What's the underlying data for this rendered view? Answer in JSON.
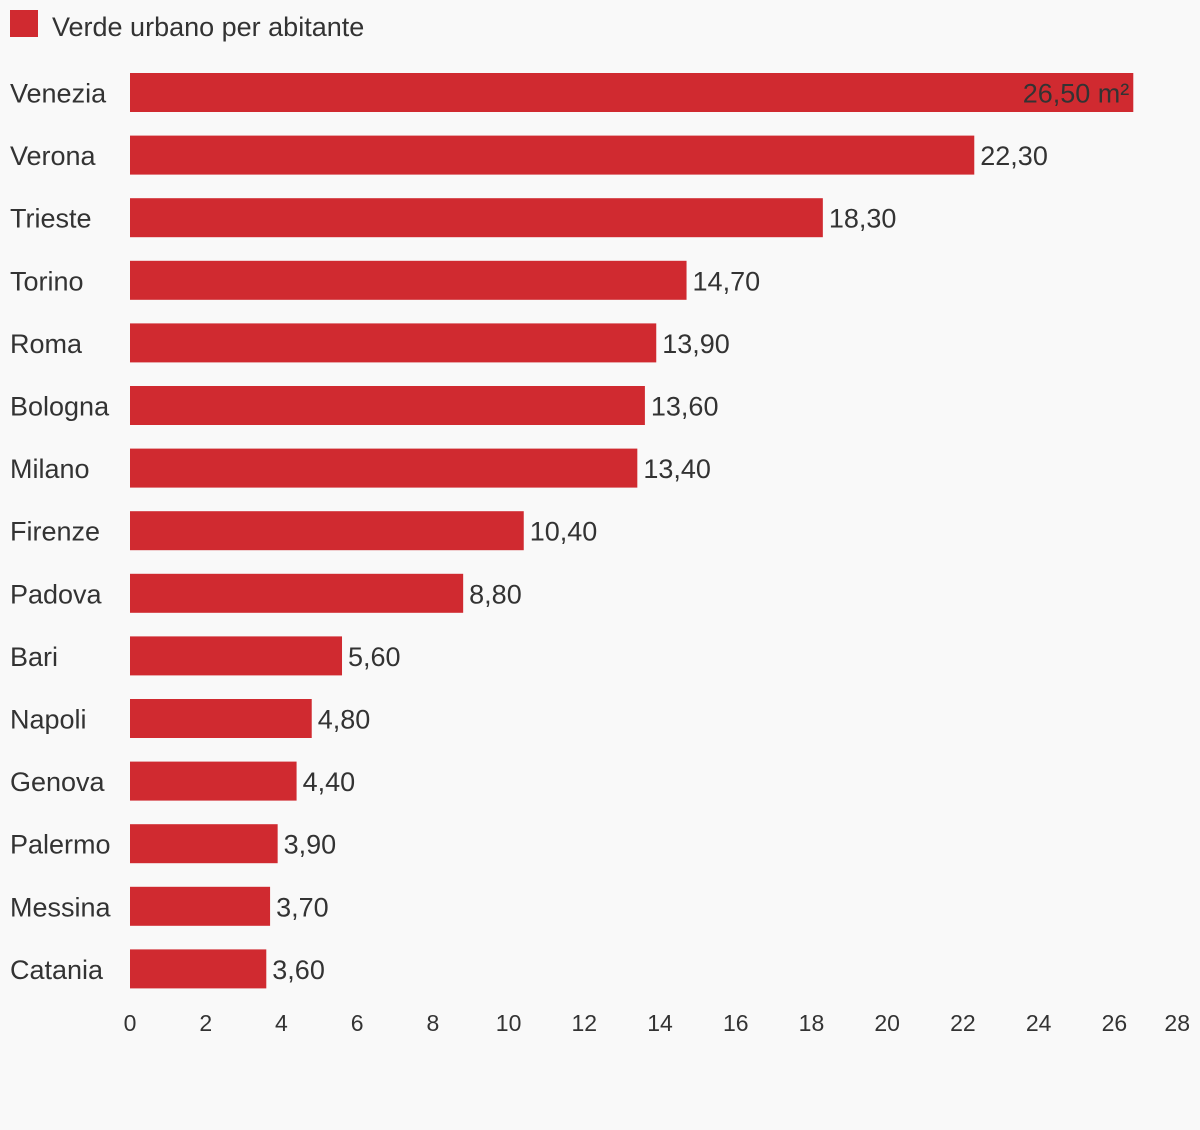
{
  "chart_data": {
    "type": "bar",
    "orientation": "horizontal",
    "series": [
      {
        "name": "Verde urbano per abitante",
        "color": "#d02a30",
        "values": [
          26.5,
          22.3,
          18.3,
          14.7,
          13.9,
          13.6,
          13.4,
          10.4,
          8.8,
          5.6,
          4.8,
          4.4,
          3.9,
          3.7,
          3.6
        ]
      }
    ],
    "categories": [
      "Venezia",
      "Verona",
      "Trieste",
      "Torino",
      "Roma",
      "Bologna",
      "Milano",
      "Firenze",
      "Padova",
      "Bari",
      "Napoli",
      "Genova",
      "Palermo",
      "Messina",
      "Catania"
    ],
    "data_labels": [
      "26,50 m²",
      "22,30",
      "18,30",
      "14,70",
      "13,90",
      "13,60",
      "13,40",
      "10,40",
      "8,80",
      "5,60",
      "4,80",
      "4,40",
      "3,90",
      "3,70",
      "3,60"
    ],
    "x_ticks": [
      "0",
      "2",
      "4",
      "6",
      "8",
      "10",
      "12",
      "14",
      "16",
      "18",
      "20",
      "22",
      "24",
      "26",
      "28"
    ],
    "xlim": [
      0,
      28
    ],
    "grid": false,
    "legend_position": "top-left",
    "colors": {
      "bar": "#d02a30",
      "text": "#333333",
      "background": "#f9f9f9"
    }
  }
}
